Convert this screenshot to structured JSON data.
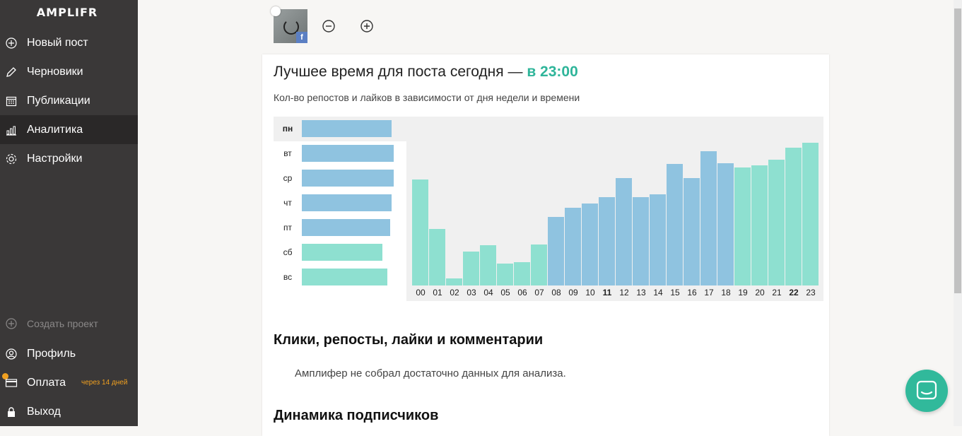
{
  "app": {
    "logo": "AMPLIFR"
  },
  "sidebar": {
    "items": [
      {
        "label": "Новый пост",
        "icon": "plus-circle-icon"
      },
      {
        "label": "Черновики",
        "icon": "pencil-icon"
      },
      {
        "label": "Публикации",
        "icon": "calendar-icon"
      },
      {
        "label": "Аналитика",
        "icon": "bar-chart-icon",
        "active": true
      },
      {
        "label": "Настройки",
        "icon": "gear-icon"
      }
    ],
    "bottom": [
      {
        "label": "Создать проект",
        "icon": "plus-circle-icon"
      },
      {
        "label": "Профиль",
        "icon": "user-icon"
      },
      {
        "label": "Оплата",
        "icon": "card-icon",
        "badge": "через 14 дней"
      },
      {
        "label": "Выход",
        "icon": "lock-icon"
      }
    ]
  },
  "header": {
    "zoom_out_icon": "minus-circle-icon",
    "zoom_in_icon": "plus-circle-icon"
  },
  "best_time": {
    "prefix": "Лучшее время для поста сегодня — ",
    "highlight": "в 23:00",
    "subtitle": "Кол-во репостов и лайков в зависимости от дня недели и времени"
  },
  "chart_data": [
    {
      "type": "bar",
      "orientation": "horizontal",
      "categories": [
        "пн",
        "вт",
        "ср",
        "чт",
        "пт",
        "сб",
        "вс"
      ],
      "values": [
        127,
        130,
        130,
        127,
        125,
        114,
        121
      ],
      "highlighted": "пн",
      "colors": [
        "#8fc3e0",
        "#8fc3e0",
        "#8fc3e0",
        "#8fc3e0",
        "#8fc3e0",
        "#8ee0d0",
        "#8ee0d0"
      ]
    },
    {
      "type": "bar",
      "categories": [
        "00",
        "01",
        "02",
        "03",
        "04",
        "05",
        "06",
        "07",
        "08",
        "09",
        "10",
        "11",
        "12",
        "13",
        "14",
        "15",
        "16",
        "17",
        "18",
        "19",
        "20",
        "21",
        "22",
        "23"
      ],
      "values": [
        150,
        80,
        10,
        48,
        57,
        31,
        33,
        58,
        97,
        110,
        116,
        125,
        152,
        125,
        129,
        172,
        152,
        190,
        173,
        167,
        170,
        178,
        195,
        202
      ],
      "bold_labels": [
        "11",
        "22"
      ],
      "colors": [
        "#8ee0d0",
        "#8ee0d0",
        "#8ee0d0",
        "#8ee0d0",
        "#8ee0d0",
        "#8ee0d0",
        "#8ee0d0",
        "#8ee0d0",
        "#8fc3e0",
        "#8fc3e0",
        "#8fc3e0",
        "#8fc3e0",
        "#8fc3e0",
        "#8fc3e0",
        "#8fc3e0",
        "#8fc3e0",
        "#8fc3e0",
        "#8fc3e0",
        "#8fc3e0",
        "#8ee0d0",
        "#8ee0d0",
        "#8ee0d0",
        "#8ee0d0",
        "#8ee0d0"
      ]
    }
  ],
  "sections": {
    "clicks_title": "Клики, репосты, лайки и комментарии",
    "clicks_note": "Амплифер не собрал достаточно данных для анализа.",
    "followers_title": "Динамика подписчиков"
  },
  "chat": {
    "icon": "chat-icon"
  }
}
